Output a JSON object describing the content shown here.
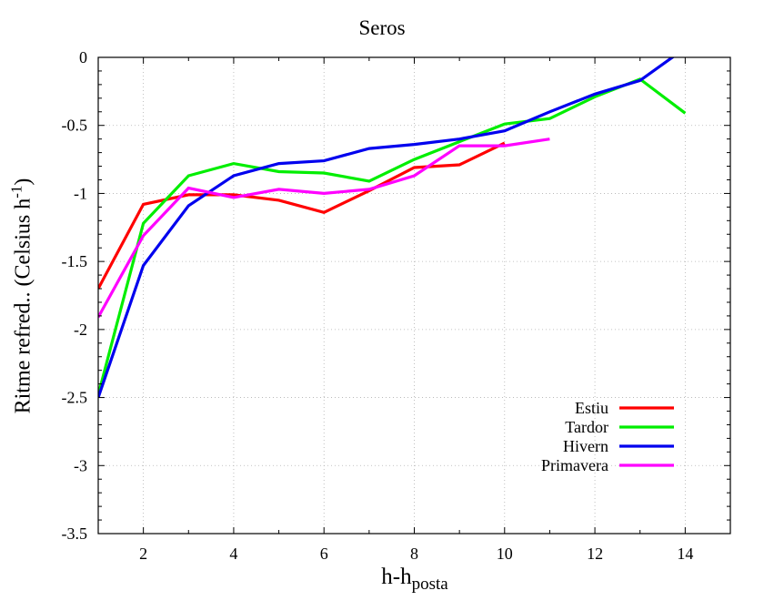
{
  "chart_data": {
    "type": "line",
    "title": "Seros",
    "xlabel": {
      "main": "h-h",
      "sub": "posta"
    },
    "ylabel": {
      "main": "Ritme refred.. (Celsius h",
      "sup": "-1",
      "close": ")"
    },
    "xlim": [
      1,
      15
    ],
    "ylim": [
      -3.5,
      0
    ],
    "xticks": [
      2,
      4,
      6,
      8,
      10,
      12,
      14
    ],
    "xtick_labels": [
      "2",
      "4",
      "6",
      "8",
      "10",
      "12",
      "14"
    ],
    "yticks": [
      0,
      -0.5,
      -1,
      -1.5,
      -2,
      -2.5,
      -3,
      -3.5
    ],
    "ytick_labels": [
      "0",
      "-0.5",
      "-1",
      "-1.5",
      "-2",
      "-2.5",
      "-3",
      "-3.5"
    ],
    "grid": true,
    "legend_position": "bottom-right",
    "series": [
      {
        "name": "Estiu",
        "color": "#ff0000",
        "x": [
          1,
          2,
          3,
          4,
          5,
          6,
          7,
          8,
          9,
          10
        ],
        "y": [
          -1.7,
          -1.08,
          -1.01,
          -1.01,
          -1.05,
          -1.14,
          -0.98,
          -0.81,
          -0.79,
          -0.63
        ]
      },
      {
        "name": "Tardor",
        "color": "#00ee00",
        "x": [
          1,
          2,
          3,
          4,
          5,
          6,
          7,
          8,
          9,
          10,
          11,
          12,
          13,
          14
        ],
        "y": [
          -2.48,
          -1.22,
          -0.87,
          -0.78,
          -0.84,
          -0.85,
          -0.91,
          -0.75,
          -0.62,
          -0.49,
          -0.45,
          -0.29,
          -0.16,
          -0.41
        ]
      },
      {
        "name": "Hivern",
        "color": "#0000ee",
        "x": [
          1,
          2,
          3,
          4,
          5,
          6,
          7,
          8,
          9,
          10,
          11,
          12,
          13,
          13.8
        ],
        "y": [
          -2.5,
          -1.53,
          -1.09,
          -0.87,
          -0.78,
          -0.76,
          -0.67,
          -0.64,
          -0.6,
          -0.54,
          -0.4,
          -0.27,
          -0.17,
          0.02
        ]
      },
      {
        "name": "Primavera",
        "color": "#ff00ff",
        "x": [
          1,
          2,
          3,
          4,
          5,
          6,
          7,
          8,
          9,
          10,
          11
        ],
        "y": [
          -1.91,
          -1.31,
          -0.96,
          -1.03,
          -0.97,
          -1.0,
          -0.97,
          -0.87,
          -0.65,
          -0.65,
          -0.6
        ]
      }
    ]
  }
}
